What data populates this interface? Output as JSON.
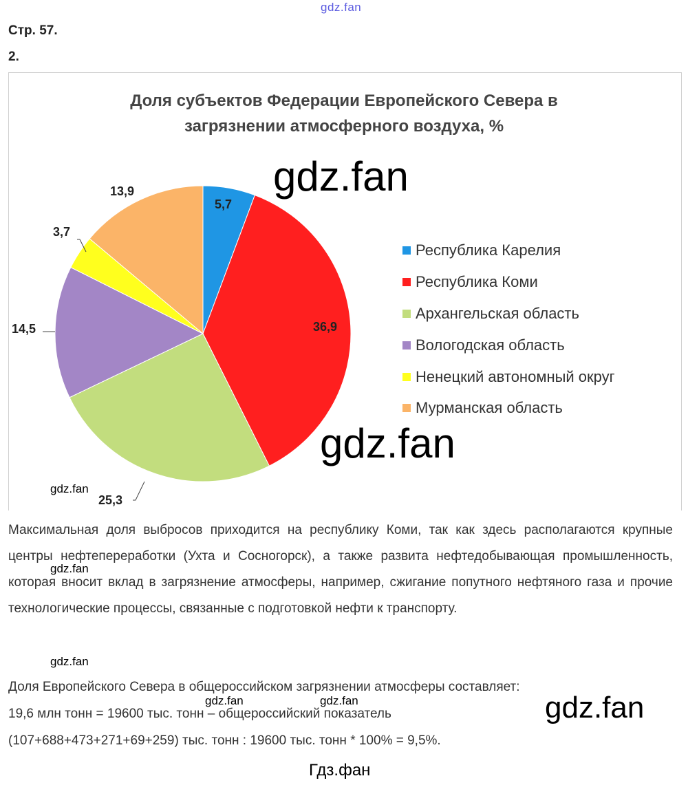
{
  "watermarks": {
    "top": "gdz.fan",
    "big": "gdz.fan",
    "small": "gdz.fan",
    "footer": "Гдз.фан"
  },
  "page_ref": "Стр. 57.",
  "task_number": "2.",
  "chart_data": {
    "type": "pie",
    "title": "Доля субъектов Федерации Европейского Севера в загрязнении атмосферного воздуха, %",
    "title_lines": [
      "Доля субъектов Федерации Европейского Севера в",
      "загрязнении атмосферного воздуха, %"
    ],
    "categories": [
      "Республика Карелия",
      "Республика Коми",
      "Архангельская область",
      "Вологодская область",
      "Ненецкий автономный округ",
      "Мурманская область"
    ],
    "values": [
      5.7,
      36.9,
      25.3,
      14.5,
      3.7,
      13.9
    ],
    "data_labels": [
      "5,7",
      "36,9",
      "25,3",
      "14,5",
      "3,7",
      "13,9"
    ],
    "colors": [
      "#1f96e4",
      "#ff1f1f",
      "#c2dd7e",
      "#a386c6",
      "#ffff1e",
      "#fbb468"
    ],
    "legend_position": "right"
  },
  "text": {
    "paragraph": "Максимальная доля выбросов приходится на республику Коми, так как здесь располагаются крупные центры нефтепереработки (Ухта и Сосногорск), а также развита нефтедобывающая промышленность, которая вносит вклад в загрязнение атмосферы, например, сжигание попутного нефтяного газа и прочие технологические процессы, связанные с подготовкой нефти к транспорту.",
    "line1": "Доля Европейского Севера в общероссийском загрязнении атмосферы составляет:",
    "line2": "19,6 млн тонн = 19600 тыс. тонн – общероссийский показатель",
    "line3": "(107+688+473+271+69+259) тыс. тонн : 19600 тыс. тонн * 100% = 9,5%."
  }
}
